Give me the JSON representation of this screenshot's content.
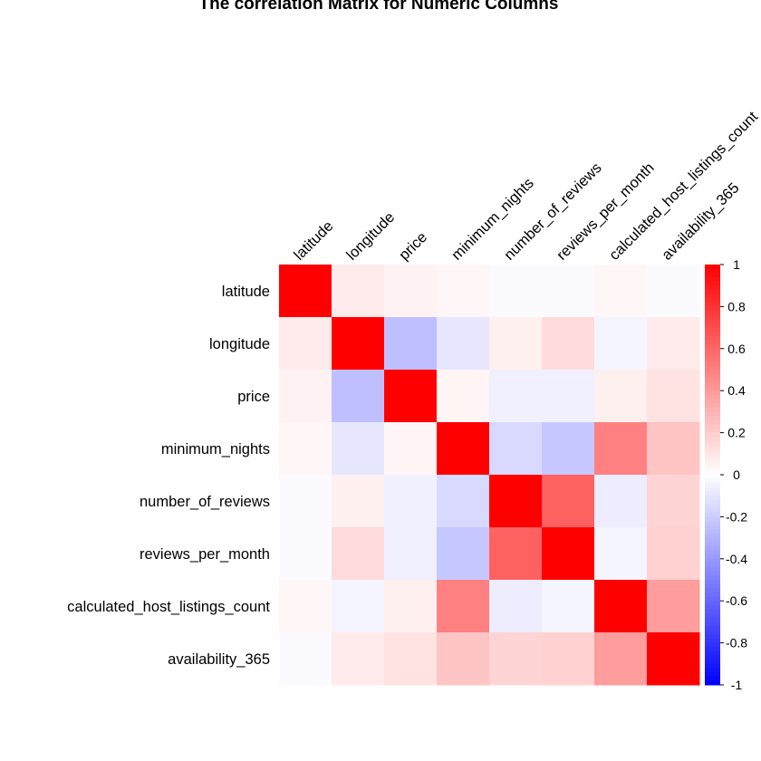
{
  "chart_data": {
    "type": "heatmap",
    "title": "The correlation Matrix for Numeric Columns",
    "variables": [
      "latitude",
      "longitude",
      "price",
      "minimum_nights",
      "number_of_reviews",
      "reviews_per_month",
      "calculated_host_listings_count",
      "availability_365"
    ],
    "matrix": [
      [
        1.0,
        0.08,
        0.05,
        0.03,
        -0.02,
        -0.02,
        0.03,
        -0.02
      ],
      [
        0.08,
        1.0,
        -0.25,
        -0.1,
        0.06,
        0.14,
        -0.04,
        0.08
      ],
      [
        0.05,
        -0.25,
        1.0,
        0.04,
        -0.06,
        -0.06,
        0.06,
        0.11
      ],
      [
        0.03,
        -0.1,
        0.04,
        1.0,
        -0.15,
        -0.22,
        0.5,
        0.23
      ],
      [
        -0.02,
        0.06,
        -0.06,
        -0.15,
        1.0,
        0.62,
        -0.07,
        0.17
      ],
      [
        -0.02,
        0.14,
        -0.06,
        -0.22,
        0.62,
        1.0,
        -0.04,
        0.18
      ],
      [
        0.03,
        -0.04,
        0.06,
        0.5,
        -0.07,
        -0.04,
        1.0,
        0.39
      ],
      [
        -0.02,
        0.08,
        0.11,
        0.23,
        0.17,
        0.18,
        0.39,
        1.0
      ]
    ],
    "colorbar": {
      "ticks": [
        "1",
        "0.8",
        "0.6",
        "0.4",
        "0.2",
        "0",
        "-0.2",
        "-0.4",
        "-0.6",
        "-0.8",
        "-1"
      ],
      "range": [
        -1,
        1
      ]
    },
    "colors": {
      "low": "#0000FF",
      "mid": "#FFFFFF",
      "high": "#FF0000"
    }
  }
}
